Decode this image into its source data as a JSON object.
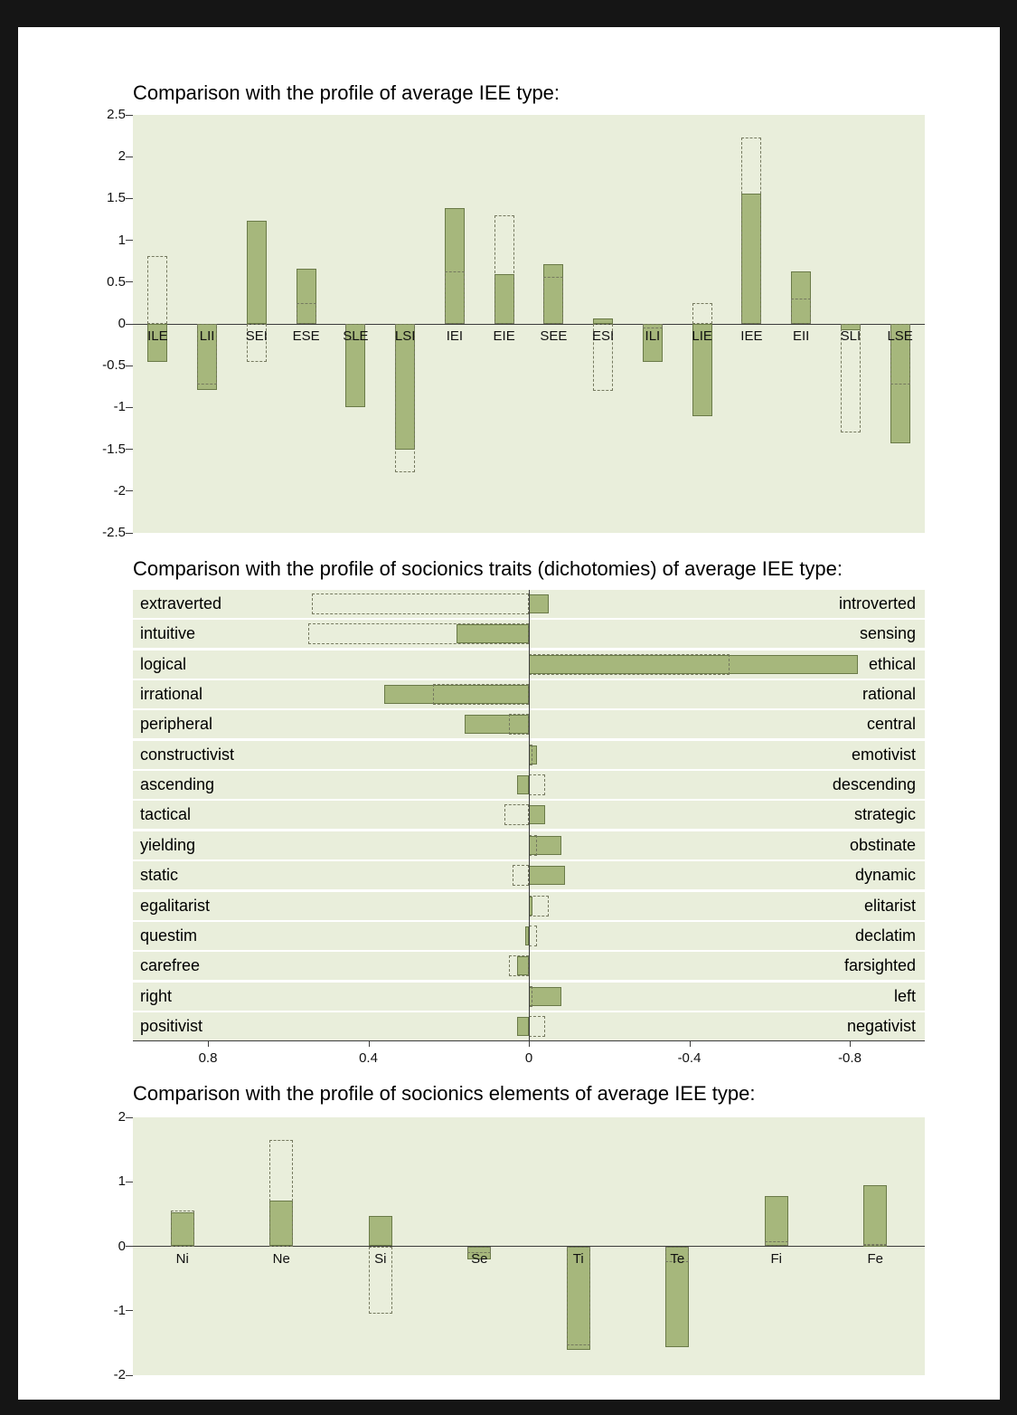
{
  "page": {
    "background": "#ffffff",
    "frame_color": "#151515",
    "plot_bg": "#e9eedb",
    "bar_fill": "#a6b77c",
    "bar_border": "#6a7a48",
    "dashed_color": "#75795f",
    "axis_color": "#3c3c3c",
    "text_color": "#111111"
  },
  "chart_data": [
    {
      "type": "bar",
      "title": "Comparison with the profile of average IEE type:",
      "categories": [
        "ILE",
        "LII",
        "SEI",
        "ESE",
        "SLE",
        "LSI",
        "IEI",
        "EIE",
        "SEE",
        "ESI",
        "ILI",
        "LIE",
        "IEE",
        "EII",
        "SLI",
        "LSE"
      ],
      "series": [
        {
          "name": "solid",
          "values": [
            -0.45,
            -0.79,
            1.23,
            0.66,
            -1.0,
            -1.5,
            1.39,
            0.6,
            0.71,
            0.06,
            -0.45,
            -1.1,
            1.56,
            0.63,
            -0.08,
            -1.43
          ]
        },
        {
          "name": "dashed",
          "values": [
            0.81,
            -0.73,
            -0.45,
            0.25,
            -0.2,
            -1.77,
            0.63,
            1.3,
            0.56,
            -0.8,
            -0.05,
            0.25,
            2.23,
            0.3,
            -1.3,
            -0.73
          ]
        }
      ],
      "ylim": [
        -2.5,
        2.5
      ],
      "y_tick_labels": [
        "2.5",
        "2",
        "1.5",
        "1",
        "0.5",
        "0",
        "-0.5",
        "-1",
        "-1.5",
        "-2",
        "-2.5"
      ]
    },
    {
      "type": "bar-horizontal",
      "title": "Comparison with the profile of socionics traits (dichotomies) of average IEE type:",
      "rows": [
        {
          "left": "extraverted",
          "right": "introverted",
          "solid": -0.05,
          "dashed": 0.54
        },
        {
          "left": "intuitive",
          "right": "sensing",
          "solid": 0.18,
          "dashed": 0.55
        },
        {
          "left": "logical",
          "right": "ethical",
          "solid": -0.82,
          "dashed": -0.5
        },
        {
          "left": "irrational",
          "right": "rational",
          "solid": 0.36,
          "dashed": 0.24
        },
        {
          "left": "peripheral",
          "right": "central",
          "solid": 0.16,
          "dashed": 0.05
        },
        {
          "left": "constructivist",
          "right": "emotivist",
          "solid": -0.02,
          "dashed": -0.01
        },
        {
          "left": "ascending",
          "right": "descending",
          "solid": 0.03,
          "dashed": -0.04
        },
        {
          "left": "tactical",
          "right": "strategic",
          "solid": -0.04,
          "dashed": 0.06
        },
        {
          "left": "yielding",
          "right": "obstinate",
          "solid": -0.08,
          "dashed": -0.02
        },
        {
          "left": "static",
          "right": "dynamic",
          "solid": -0.09,
          "dashed": 0.04
        },
        {
          "left": "egalitarist",
          "right": "elitarist",
          "solid": -0.01,
          "dashed": -0.05
        },
        {
          "left": "questim",
          "right": "declatim",
          "solid": 0.01,
          "dashed": -0.02
        },
        {
          "left": "carefree",
          "right": "farsighted",
          "solid": 0.03,
          "dashed": 0.05
        },
        {
          "left": "right",
          "right": "left",
          "solid": -0.08,
          "dashed": -0.01
        },
        {
          "left": "positivist",
          "right": "negativist",
          "solid": 0.03,
          "dashed": -0.04
        }
      ],
      "xlim": [
        0.8,
        -0.8
      ],
      "x_tick_labels": [
        "0.8",
        "0.4",
        "0",
        "-0.4",
        "-0.8"
      ]
    },
    {
      "type": "bar",
      "title": "Comparison with the profile of socionics elements of average IEE type:",
      "categories": [
        "Ni",
        "Ne",
        "Si",
        "Se",
        "Ti",
        "Te",
        "Fi",
        "Fe"
      ],
      "series": [
        {
          "name": "solid",
          "values": [
            0.53,
            0.71,
            0.47,
            -0.2,
            -1.6,
            -1.56,
            0.78,
            0.95
          ]
        },
        {
          "name": "dashed",
          "values": [
            0.55,
            1.65,
            -1.05,
            -0.1,
            -1.54,
            -0.25,
            0.08,
            0.04
          ]
        }
      ],
      "ylim": [
        -2,
        2
      ],
      "y_tick_labels": [
        "2",
        "1",
        "0",
        "-1",
        "-2"
      ]
    }
  ]
}
